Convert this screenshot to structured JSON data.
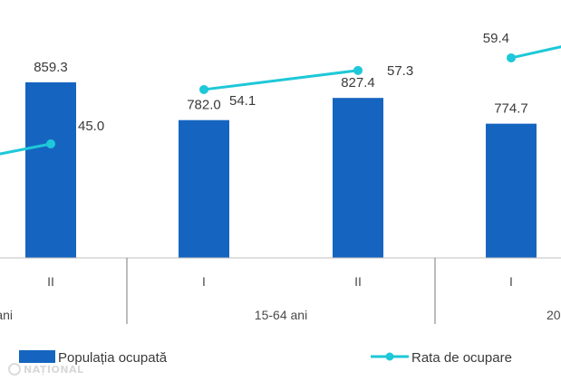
{
  "chart_data": {
    "type": "bar",
    "categories": [
      {
        "period": "II",
        "group": "ani"
      },
      {
        "period": "I",
        "group": "15-64 ani"
      },
      {
        "period": "II",
        "group": "15-64 ani"
      },
      {
        "period": "I",
        "group": "20"
      }
    ],
    "group_labels": [
      "ani",
      "15-64 ani",
      "20"
    ],
    "series": [
      {
        "name": "Populația ocupată",
        "kind": "bar",
        "values": [
          859.3,
          782.0,
          827.4,
          774.7
        ],
        "labels": [
          "859.3",
          "782.0",
          "827.4",
          "774.7"
        ],
        "color": "#1565c0"
      },
      {
        "name": "Rata de ocupare",
        "kind": "line",
        "values": [
          45.0,
          54.1,
          57.3,
          59.4
        ],
        "labels": [
          "45.0",
          "54.1",
          "57.3",
          "59.4"
        ],
        "color": "#1ec8d8"
      }
    ],
    "legend": {
      "placement": "bottom"
    }
  },
  "watermark": "NAȚIONAL"
}
